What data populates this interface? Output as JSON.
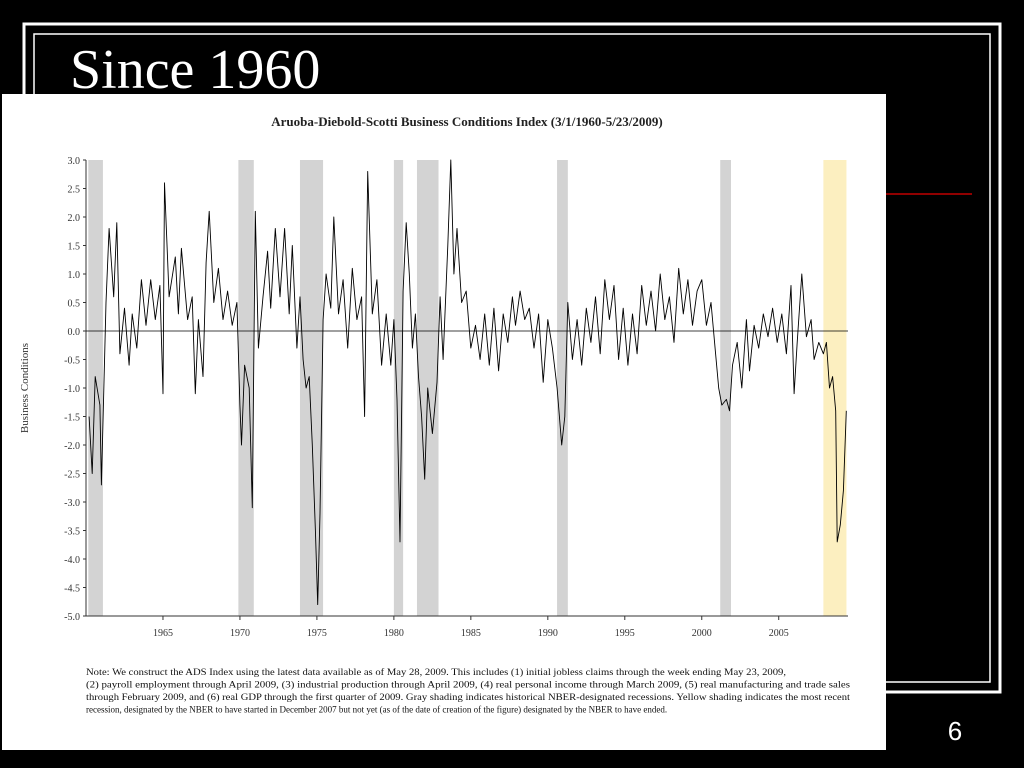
{
  "slide": {
    "title": "Since 1960",
    "page_number": "6"
  },
  "chart_data": {
    "type": "line",
    "title": "Aruoba-Diebold-Scotti Business Conditions Index (3/1/1960-5/23/2009)",
    "y_label": "Business Conditions",
    "color": "#000000",
    "xlim": [
      1960,
      2009.5
    ],
    "ylim": [
      -5,
      3
    ],
    "xticks": [
      1965,
      1970,
      1975,
      1980,
      1985,
      1990,
      1995,
      2000,
      2005
    ],
    "yticks": [
      {
        "value": 3,
        "label": "3.0"
      },
      2.5,
      {
        "value": 2,
        "label": "2.0"
      },
      1.5,
      {
        "value": 1,
        "label": "1.0"
      },
      0.5,
      {
        "value": 0,
        "label": "0.0"
      },
      -0.5,
      {
        "value": -1,
        "label": "-1.0"
      },
      -1.5,
      {
        "value": -2,
        "label": "-2.0"
      },
      -2.5,
      {
        "value": -3,
        "label": "-3.0"
      },
      -3.5,
      {
        "value": -4,
        "label": "-4.0"
      },
      -4.5,
      {
        "value": -5,
        "label": "-5.0"
      }
    ],
    "hline": 0,
    "shaded_periods": [
      {
        "start": 1960.15,
        "end": 1961.1,
        "color": "#d3d3d3"
      },
      {
        "start": 1969.9,
        "end": 1970.9,
        "color": "#d3d3d3"
      },
      {
        "start": 1973.9,
        "end": 1975.4,
        "color": "#d3d3d3"
      },
      {
        "start": 1980.0,
        "end": 1980.6,
        "color": "#d3d3d3"
      },
      {
        "start": 1981.5,
        "end": 1982.9,
        "color": "#d3d3d3"
      },
      {
        "start": 1990.6,
        "end": 1991.3,
        "color": "#d3d3d3"
      },
      {
        "start": 2001.2,
        "end": 2001.9,
        "color": "#d3d3d3"
      },
      {
        "start": 2007.9,
        "end": 2009.4,
        "color": "#fcefc0"
      }
    ],
    "x": [
      1960.2,
      1960.4,
      1960.6,
      1960.9,
      1961.0,
      1961.3,
      1961.5,
      1961.8,
      1962.0,
      1962.2,
      1962.5,
      1962.8,
      1963.0,
      1963.3,
      1963.6,
      1963.9,
      1964.2,
      1964.5,
      1964.8,
      1965.0,
      1965.1,
      1965.4,
      1965.8,
      1966.0,
      1966.2,
      1966.6,
      1966.9,
      1967.1,
      1967.3,
      1967.6,
      1967.8,
      1968.0,
      1968.3,
      1968.6,
      1968.9,
      1969.2,
      1969.5,
      1969.8,
      1970.0,
      1970.1,
      1970.3,
      1970.6,
      1970.8,
      1971.0,
      1971.2,
      1971.5,
      1971.8,
      1972.0,
      1972.3,
      1972.6,
      1972.9,
      1973.2,
      1973.4,
      1973.7,
      1973.9,
      1974.1,
      1974.3,
      1974.5,
      1974.7,
      1974.9,
      1975.05,
      1975.2,
      1975.4,
      1975.6,
      1975.9,
      1976.1,
      1976.4,
      1976.7,
      1977.0,
      1977.3,
      1977.6,
      1977.9,
      1978.1,
      1978.3,
      1978.6,
      1978.9,
      1979.2,
      1979.5,
      1979.8,
      1980.0,
      1980.2,
      1980.4,
      1980.6,
      1980.8,
      1981.0,
      1981.2,
      1981.4,
      1981.6,
      1981.8,
      1982.0,
      1982.2,
      1982.5,
      1982.8,
      1983.0,
      1983.2,
      1983.5,
      1983.7,
      1983.9,
      1984.1,
      1984.4,
      1984.7,
      1985.0,
      1985.3,
      1985.6,
      1985.9,
      1986.2,
      1986.5,
      1986.8,
      1987.1,
      1987.4,
      1987.7,
      1987.9,
      1988.2,
      1988.5,
      1988.8,
      1989.1,
      1989.4,
      1989.7,
      1990.0,
      1990.3,
      1990.6,
      1990.9,
      1991.1,
      1991.3,
      1991.6,
      1991.9,
      1992.2,
      1992.5,
      1992.8,
      1993.1,
      1993.4,
      1993.7,
      1994.0,
      1994.3,
      1994.6,
      1994.9,
      1995.2,
      1995.5,
      1995.8,
      1996.1,
      1996.4,
      1996.7,
      1997.0,
      1997.3,
      1997.6,
      1997.9,
      1998.2,
      1998.5,
      1998.8,
      1999.1,
      1999.4,
      1999.7,
      2000.0,
      2000.3,
      2000.6,
      2000.9,
      2001.1,
      2001.3,
      2001.6,
      2001.8,
      2002.0,
      2002.3,
      2002.6,
      2002.9,
      2003.1,
      2003.4,
      2003.7,
      2004.0,
      2004.3,
      2004.6,
      2004.9,
      2005.2,
      2005.5,
      2005.8,
      2006.0,
      2006.2,
      2006.5,
      2006.8,
      2007.1,
      2007.3,
      2007.6,
      2007.9,
      2008.1,
      2008.3,
      2008.5,
      2008.7,
      2008.8,
      2009.0,
      2009.2,
      2009.39
    ],
    "values": [
      -1.5,
      -2.5,
      -0.8,
      -1.3,
      -2.7,
      0.5,
      1.8,
      0.6,
      1.9,
      -0.4,
      0.4,
      -0.6,
      0.3,
      -0.3,
      0.9,
      0.1,
      0.9,
      0.2,
      0.8,
      -1.1,
      2.6,
      0.6,
      1.3,
      0.3,
      1.45,
      0.2,
      0.6,
      -1.1,
      0.2,
      -0.8,
      1.2,
      2.1,
      0.5,
      1.1,
      0.2,
      0.7,
      0.1,
      0.5,
      -1.3,
      -2.0,
      -0.6,
      -1.0,
      -3.1,
      2.1,
      -0.3,
      0.6,
      1.4,
      0.4,
      1.8,
      0.6,
      1.8,
      0.3,
      1.5,
      -0.3,
      0.6,
      -0.5,
      -1.0,
      -0.8,
      -2.0,
      -3.5,
      -4.8,
      -3.2,
      0.2,
      1.0,
      0.4,
      2.0,
      0.3,
      0.9,
      -0.3,
      1.1,
      0.2,
      0.6,
      -1.5,
      2.8,
      0.3,
      0.9,
      -0.6,
      0.3,
      -0.6,
      0.2,
      -1.2,
      -3.7,
      0.7,
      1.9,
      1.0,
      -0.3,
      0.3,
      -0.8,
      -1.5,
      -2.6,
      -1.0,
      -1.8,
      -0.9,
      0.6,
      -0.5,
      1.5,
      3.0,
      1.0,
      1.8,
      0.5,
      0.7,
      -0.3,
      0.1,
      -0.5,
      0.3,
      -0.6,
      0.4,
      -0.7,
      0.3,
      -0.2,
      0.6,
      0.1,
      0.7,
      0.2,
      0.4,
      -0.3,
      0.3,
      -0.9,
      0.2,
      -0.3,
      -1.0,
      -2.0,
      -1.5,
      0.5,
      -0.5,
      0.2,
      -0.6,
      0.4,
      -0.2,
      0.6,
      -0.4,
      0.9,
      0.2,
      0.8,
      -0.5,
      0.4,
      -0.6,
      0.3,
      -0.4,
      0.8,
      0.1,
      0.7,
      0.0,
      1.0,
      0.2,
      0.6,
      -0.2,
      1.1,
      0.3,
      0.9,
      0.1,
      0.7,
      0.9,
      0.1,
      0.5,
      -0.4,
      -1.0,
      -1.3,
      -1.2,
      -1.4,
      -0.6,
      -0.2,
      -1.0,
      0.2,
      -0.7,
      0.1,
      -0.3,
      0.3,
      -0.1,
      0.4,
      -0.2,
      0.3,
      -0.4,
      0.8,
      -1.1,
      -0.2,
      1.0,
      -0.1,
      0.2,
      -0.5,
      -0.2,
      -0.4,
      -0.2,
      -1.0,
      -0.8,
      -1.4,
      -3.7,
      -3.4,
      -2.8,
      -1.4
    ],
    "note": [
      "Note: We construct the ADS Index using the latest data available as of May 28, 2009. This includes (1) initial jobless claims through the week ending May 23, 2009,",
      "(2) payroll employment through April 2009, (3) industrial production through April 2009, (4) real personal income through March 2009, (5) real manufacturing and trade sales",
      "through February 2009, and (6) real GDP through the first quarter of 2009. Gray shading indicates historical NBER-designated recessions. Yellow shading indicates the most recent",
      "recession, designated by the NBER to have started in December 2007 but not yet (as of the date of creation of the figure) designated by the NBER to have ended."
    ]
  }
}
